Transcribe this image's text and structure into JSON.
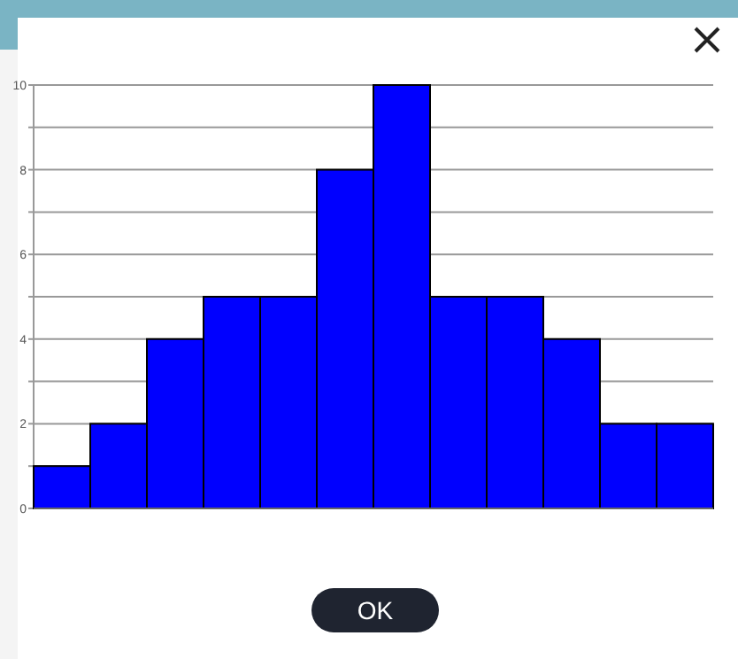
{
  "chart_data": {
    "type": "bar",
    "categories": [
      null,
      null,
      null,
      null,
      null,
      null,
      null,
      null,
      null,
      null,
      null,
      null
    ],
    "values": [
      1,
      2,
      4,
      5,
      5,
      8,
      10,
      5,
      5,
      4,
      2,
      2
    ],
    "color": "#0000ff",
    "ylim": [
      0,
      10
    ],
    "yticks": [
      0,
      {
        "value": 1,
        "label": null
      },
      2,
      {
        "value": 3,
        "label": null
      },
      4,
      {
        "value": 5,
        "label": null
      },
      6,
      {
        "value": 7,
        "label": null
      },
      8,
      {
        "value": 9,
        "label": null
      },
      10
    ],
    "grid": "y",
    "annotations": [
      "OK"
    ]
  }
}
